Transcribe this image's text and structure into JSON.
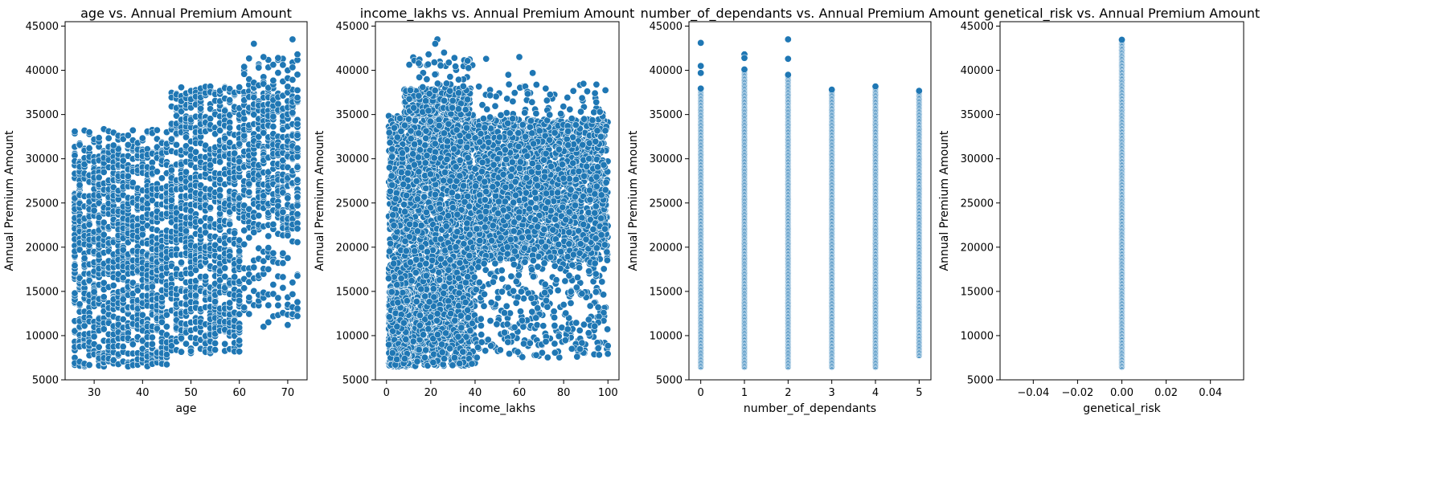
{
  "chart_data": [
    {
      "type": "scatter",
      "title": "age vs. Annual Premium Amount",
      "xlabel": "age",
      "ylabel": "Annual Premium Amount",
      "xlim": [
        24,
        74
      ],
      "ylim": [
        5000,
        45500
      ],
      "xticks": [
        30,
        40,
        50,
        60,
        70
      ],
      "yticks": [
        5000,
        10000,
        15000,
        20000,
        25000,
        30000,
        35000,
        40000,
        45000
      ],
      "xticklabels": [
        "30",
        "40",
        "50",
        "60",
        "70"
      ],
      "yticklabels": [
        "5000",
        "10000",
        "15000",
        "20000",
        "25000",
        "30000",
        "35000",
        "40000",
        "45000"
      ],
      "grid": false,
      "color": "#1f77b4",
      "clusters": [
        {
          "x": [
            26,
            45
          ],
          "y": [
            6500,
            31500
          ],
          "step": 1,
          "n": 60
        },
        {
          "x": [
            26,
            45
          ],
          "y": [
            31500,
            33500
          ],
          "step": 1,
          "n": 2
        },
        {
          "x": [
            46,
            60
          ],
          "y": [
            8000,
            36500
          ],
          "step": 1,
          "n": 60
        },
        {
          "x": [
            46,
            60
          ],
          "y": [
            36500,
            38200
          ],
          "step": 1,
          "n": 3
        },
        {
          "x": [
            61,
            72
          ],
          "y": [
            22000,
            38000
          ],
          "step": 1,
          "n": 35
        },
        {
          "x": [
            61,
            72
          ],
          "y": [
            12000,
            22000
          ],
          "step": 1,
          "n": 7
        },
        {
          "x": [
            61,
            72
          ],
          "y": [
            38000,
            41500
          ],
          "step": 1,
          "n": 3
        }
      ],
      "extra_points": [
        [
          63,
          43000
        ],
        [
          71,
          43500
        ],
        [
          65,
          41500
        ],
        [
          68,
          41400
        ],
        [
          65,
          11000
        ],
        [
          66,
          11500
        ],
        [
          70,
          11200
        ],
        [
          72,
          41800
        ],
        [
          64,
          40300
        ]
      ]
    },
    {
      "type": "scatter",
      "title": "income_lakhs vs. Annual Premium Amount",
      "xlabel": "income_lakhs",
      "ylabel": "Annual Premium Amount",
      "xlim": [
        -5,
        105
      ],
      "ylim": [
        5000,
        45500
      ],
      "xticks": [
        0,
        20,
        40,
        60,
        80,
        100
      ],
      "yticks": [
        5000,
        10000,
        15000,
        20000,
        25000,
        30000,
        35000,
        40000,
        45000
      ],
      "xticklabels": [
        "0",
        "20",
        "40",
        "60",
        "80",
        "100"
      ],
      "yticklabels": [
        "5000",
        "10000",
        "15000",
        "20000",
        "25000",
        "30000",
        "35000",
        "40000",
        "45000"
      ],
      "grid": false,
      "color": "#1f77b4",
      "clusters": [
        {
          "x": [
            1,
            40
          ],
          "y": [
            6500,
            35000
          ],
          "step": 0,
          "n": 2600
        },
        {
          "x": [
            1,
            10
          ],
          "y": [
            6500,
            15000
          ],
          "step": 0,
          "n": 500
        },
        {
          "x": [
            8,
            38
          ],
          "y": [
            35000,
            38000
          ],
          "step": 0,
          "n": 300
        },
        {
          "x": [
            10,
            40
          ],
          "y": [
            38000,
            41500
          ],
          "step": 0,
          "n": 40
        },
        {
          "x": [
            40,
            100
          ],
          "y": [
            18500,
            34500
          ],
          "step": 0,
          "n": 2200
        },
        {
          "x": [
            40,
            100
          ],
          "y": [
            7500,
            18500
          ],
          "step": 0,
          "n": 320
        },
        {
          "x": [
            40,
            100
          ],
          "y": [
            34500,
            38500
          ],
          "step": 0,
          "n": 70
        }
      ],
      "extra_points": [
        [
          23,
          43500
        ],
        [
          22,
          43000
        ],
        [
          45,
          41300
        ],
        [
          60,
          41500
        ],
        [
          19,
          41800
        ],
        [
          26,
          42000
        ],
        [
          66,
          39700
        ],
        [
          55,
          39500
        ]
      ]
    },
    {
      "type": "scatter",
      "title": "number_of_dependants vs. Annual Premium Amount",
      "xlabel": "number_of_dependants",
      "ylabel": "Annual Premium Amount",
      "xlim": [
        -0.27,
        5.27
      ],
      "ylim": [
        5000,
        45500
      ],
      "xticks": [
        0,
        1,
        2,
        3,
        4,
        5
      ],
      "yticks": [
        5000,
        10000,
        15000,
        20000,
        25000,
        30000,
        35000,
        40000,
        45000
      ],
      "xticklabels": [
        "0",
        "1",
        "2",
        "3",
        "4",
        "5"
      ],
      "yticklabels": [
        "5000",
        "10000",
        "15000",
        "20000",
        "25000",
        "30000",
        "35000",
        "40000",
        "45000"
      ],
      "grid": false,
      "color": "#1f77b4",
      "columns": [
        {
          "x": 0,
          "ymin": 6500,
          "ymax": 38000,
          "extra": [
            43100,
            40500,
            39700
          ]
        },
        {
          "x": 1,
          "ymin": 6500,
          "ymax": 40200,
          "extra": [
            41800,
            41400
          ]
        },
        {
          "x": 2,
          "ymin": 6500,
          "ymax": 39500,
          "extra": [
            43500,
            41300
          ]
        },
        {
          "x": 3,
          "ymin": 6500,
          "ymax": 37900,
          "extra": []
        },
        {
          "x": 4,
          "ymin": 6500,
          "ymax": 38200,
          "extra": []
        },
        {
          "x": 5,
          "ymin": 7800,
          "ymax": 37700,
          "extra": []
        }
      ]
    },
    {
      "type": "scatter",
      "title": "genetical_risk vs. Annual Premium Amount",
      "xlabel": "genetical_risk",
      "ylabel": "Annual Premium Amount",
      "xlim": [
        -0.055,
        0.055
      ],
      "ylim": [
        5000,
        45500
      ],
      "xticks": [
        -0.04,
        -0.02,
        0.0,
        0.02,
        0.04
      ],
      "yticks": [
        5000,
        10000,
        15000,
        20000,
        25000,
        30000,
        35000,
        40000,
        45000
      ],
      "xticklabels": [
        "−0.04",
        "−0.02",
        "0.00",
        "0.02",
        "0.04"
      ],
      "yticklabels": [
        "5000",
        "10000",
        "15000",
        "20000",
        "25000",
        "30000",
        "35000",
        "40000",
        "45000"
      ],
      "grid": false,
      "color": "#1f77b4",
      "columns": [
        {
          "x": 0,
          "ymin": 6500,
          "ymax": 43500,
          "extra": []
        }
      ]
    }
  ]
}
